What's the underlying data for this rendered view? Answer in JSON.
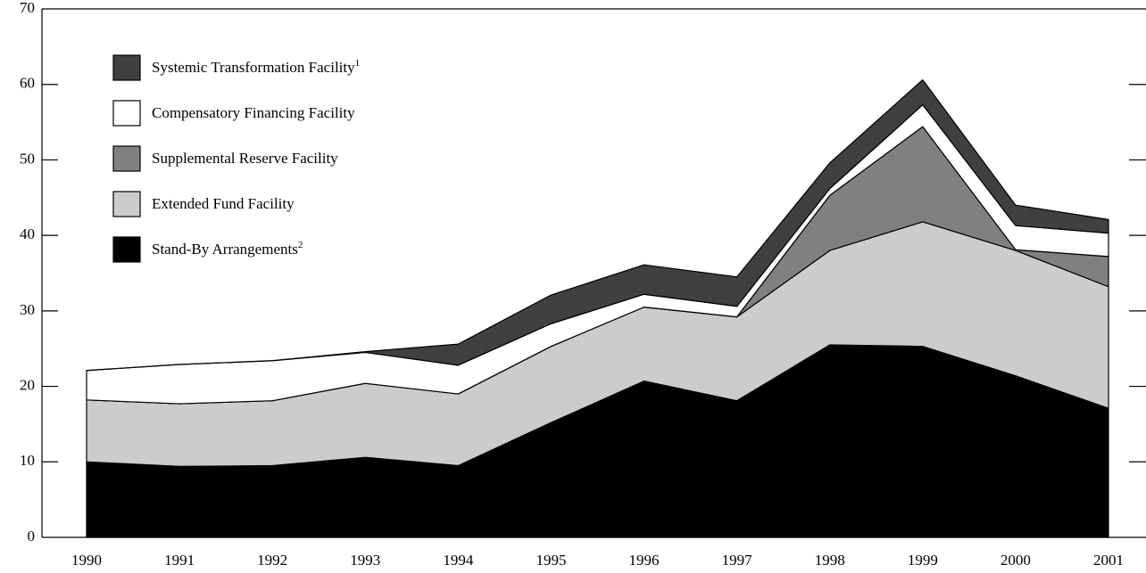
{
  "chart_data": {
    "type": "stacked_area",
    "categories": [
      "1990",
      "1991",
      "1992",
      "1993",
      "1994",
      "1995",
      "1996",
      "1997",
      "1998",
      "1999",
      "2000",
      "2001"
    ],
    "series": [
      {
        "name": "Stand-By Arrangements",
        "note": "2",
        "color": "#000000",
        "values": [
          10.0,
          9.4,
          9.5,
          10.6,
          9.5,
          15.2,
          20.7,
          18.1,
          25.5,
          25.3,
          21.4,
          17.1
        ]
      },
      {
        "name": "Extended Fund Facility",
        "color": "#cccccc",
        "values": [
          8.2,
          8.3,
          8.6,
          9.8,
          9.5,
          10.1,
          9.8,
          11.1,
          12.5,
          16.5,
          16.6,
          16.1
        ]
      },
      {
        "name": "Supplemental Reserve Facility",
        "color": "#808080",
        "values": [
          0,
          0,
          0,
          0,
          0,
          0,
          0,
          0,
          7.3,
          12.6,
          0.1,
          4.0
        ]
      },
      {
        "name": "Compensatory Financing Facility",
        "color": "#ffffff",
        "values": [
          3.9,
          5.2,
          5.3,
          4.1,
          3.8,
          3.0,
          1.7,
          1.4,
          0.9,
          2.9,
          3.2,
          3.1
        ]
      },
      {
        "name": "Systemic Transformation Facility",
        "note": "1",
        "color": "#404040",
        "values": [
          0,
          0,
          0,
          0.1,
          2.8,
          3.8,
          3.9,
          3.9,
          3.4,
          3.3,
          2.7,
          1.8
        ]
      }
    ],
    "ylim": [
      0,
      70
    ],
    "yticks": [
      0,
      10,
      20,
      30,
      40,
      50,
      60,
      70
    ]
  }
}
